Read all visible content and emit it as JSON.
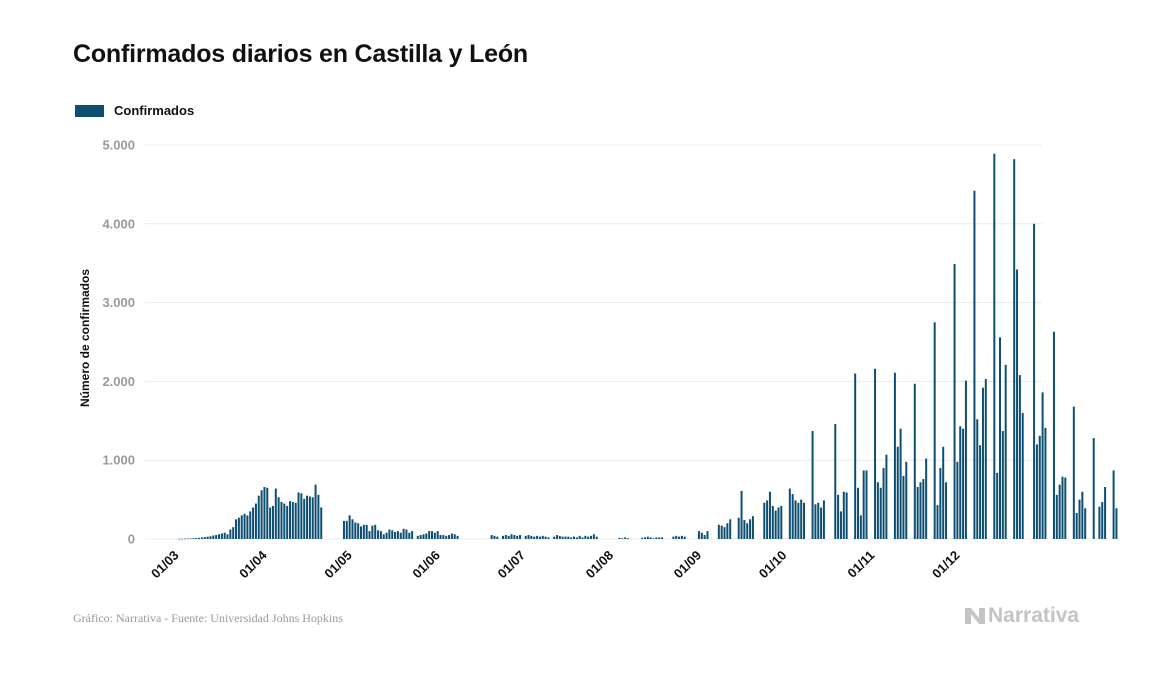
{
  "colors": {
    "bar": "#0e4f71",
    "grid": "#ececec",
    "tick_label": "#9a9a9a",
    "axis_title": "#111111",
    "brand": "#c4c4c4"
  },
  "legend": {
    "label": "Confirmados",
    "icon": "bar-swatch"
  },
  "footer": {
    "source": "Gráfico: Narrativa - Fuente: Universidad Johns Hopkins",
    "brand_name": "Narrativa",
    "brand_icon": "narrativa-logo-icon"
  },
  "chart_data": {
    "type": "bar",
    "title": "Confirmados diarios en Castilla y León",
    "ylabel": "Número de confirmados",
    "xlabel": "",
    "ylim": [
      0,
      5000
    ],
    "yticks": [
      {
        "value": 0,
        "label": "0"
      },
      {
        "value": 1000,
        "label": "1.000"
      },
      {
        "value": 2000,
        "label": "2.000"
      },
      {
        "value": 3000,
        "label": "3.000"
      },
      {
        "value": 4000,
        "label": "4.000"
      },
      {
        "value": 5000,
        "label": "5.000"
      }
    ],
    "xticks": [
      {
        "date": "2020-03-01",
        "label": "01/03"
      },
      {
        "date": "2020-04-01",
        "label": "01/04"
      },
      {
        "date": "2020-05-01",
        "label": "01/05"
      },
      {
        "date": "2020-06-01",
        "label": "01/06"
      },
      {
        "date": "2020-07-01",
        "label": "01/07"
      },
      {
        "date": "2020-08-01",
        "label": "01/08"
      },
      {
        "date": "2020-09-01",
        "label": "01/09"
      },
      {
        "date": "2020-10-01",
        "label": "01/10"
      },
      {
        "date": "2020-11-01",
        "label": "01/11"
      },
      {
        "date": "2020-12-01",
        "label": "01/12"
      }
    ],
    "x_start": "2020-02-21",
    "grid": true,
    "legend_position": "top-left",
    "series": [
      {
        "name": "Confirmados",
        "values": [
          0,
          0,
          0,
          0,
          0,
          0,
          0,
          0,
          0,
          0,
          0,
          2,
          3,
          5,
          6,
          8,
          10,
          12,
          15,
          20,
          25,
          30,
          35,
          45,
          50,
          60,
          70,
          80,
          60,
          120,
          150,
          250,
          270,
          300,
          320,
          300,
          350,
          400,
          450,
          550,
          620,
          660,
          650,
          400,
          420,
          640,
          530,
          470,
          450,
          420,
          480,
          470,
          460,
          590,
          580,
          510,
          550,
          540,
          530,
          690,
          560,
          400,
          0,
          0,
          0,
          0,
          0,
          0,
          0,
          230,
          230,
          300,
          250,
          210,
          200,
          160,
          180,
          180,
          100,
          170,
          180,
          110,
          100,
          60,
          80,
          120,
          110,
          90,
          100,
          80,
          130,
          120,
          80,
          100,
          0,
          40,
          50,
          60,
          70,
          100,
          100,
          80,
          100,
          50,
          50,
          40,
          50,
          70,
          60,
          40,
          0,
          0,
          0,
          0,
          0,
          0,
          0,
          0,
          0,
          0,
          0,
          50,
          40,
          30,
          0,
          40,
          50,
          40,
          60,
          50,
          40,
          50,
          0,
          40,
          50,
          40,
          30,
          40,
          30,
          40,
          30,
          20,
          0,
          30,
          50,
          40,
          30,
          30,
          30,
          20,
          30,
          20,
          40,
          20,
          40,
          30,
          40,
          60,
          30,
          0,
          0,
          0,
          0,
          0,
          0,
          0,
          15,
          10,
          20,
          10,
          0,
          0,
          0,
          0,
          15,
          20,
          30,
          20,
          10,
          20,
          20,
          20,
          0,
          0,
          0,
          30,
          40,
          30,
          40,
          30,
          0,
          0,
          0,
          0,
          100,
          80,
          50,
          100,
          0,
          0,
          0,
          180,
          170,
          150,
          200,
          250,
          0,
          0,
          270,
          610,
          240,
          200,
          250,
          290,
          0,
          0,
          0,
          460,
          490,
          600,
          420,
          360,
          400,
          420,
          0,
          0,
          640,
          570,
          490,
          460,
          500,
          460,
          0,
          0,
          1370,
          440,
          460,
          400,
          490,
          0,
          0,
          0,
          1460,
          560,
          350,
          600,
          590,
          0,
          0,
          2100,
          650,
          300,
          870,
          870,
          0,
          0,
          2160,
          720,
          650,
          900,
          1070,
          0,
          0,
          2110,
          1170,
          1400,
          800,
          980,
          0,
          0,
          1970,
          660,
          720,
          760,
          1020,
          0,
          0,
          2750,
          430,
          900,
          1170,
          720,
          0,
          0,
          3490,
          980,
          1430,
          1400,
          2010,
          0,
          0,
          4420,
          1520,
          1190,
          1920,
          2030,
          0,
          0,
          4890,
          840,
          2560,
          1370,
          2210,
          0,
          0,
          4820,
          3420,
          2080,
          1600,
          0,
          0,
          0,
          4000,
          1200,
          1310,
          1860,
          1410,
          0,
          0,
          2630,
          560,
          690,
          790,
          780,
          0,
          0,
          1680,
          330,
          500,
          600,
          390,
          0,
          0,
          1280,
          0,
          410,
          470,
          660,
          0,
          0,
          870,
          390
        ]
      }
    ]
  }
}
